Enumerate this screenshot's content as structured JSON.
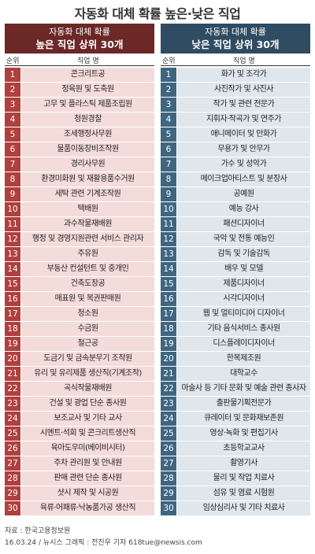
{
  "title": "자동화 대체 확률 높은·낮은 직업",
  "left_header": {
    "sub": "자동화 대체 확률",
    "main": "높은 직업 상위 30개"
  },
  "right_header": {
    "sub": "자동화 대체 확률",
    "main": "낮은 직업 상위 30개"
  },
  "col_rank": "순위",
  "col_job": "직업 명",
  "colors": {
    "high": "#b0403e",
    "high_bg": "#f4dcdb",
    "low": "#3f6680",
    "low_bg": "#dfe6ec"
  },
  "chart_data": {
    "type": "table",
    "high_jobs": [
      "콘크리트공",
      "정육원 및 도축원",
      "고무 및 플라스틱 제품조립원",
      "청원경찰",
      "조세행정사무원",
      "물품이동장비조작원",
      "경리사무원",
      "환경미화원 및 재활용품수거원",
      "세탁 관련 기계조작원",
      "택배원",
      "과수작물재배원",
      "행정 및 경영지원관련 서비스 관리자",
      "주유원",
      "부동산 컨설턴트 및 중개인",
      "건축도장공",
      "매표원 및 복권판매원",
      "청소원",
      "수금원",
      "철근공",
      "도금기 및 금속분무기 조작원",
      "유리 및 유리제품 생산직(기계조작)",
      "곡식작물재배원",
      "건설 및 광업 단순 종사원",
      "보조교사 및 기타 교사",
      "시멘트·석회 및 콘크리트생산직",
      "육아도우미(베이비시터)",
      "주차 관리원 및 안내원",
      "판매 관련 단순 종사원",
      "샷시 제작 및 시공원",
      "육류·어패류·낙농품가공 생산직"
    ],
    "low_jobs": [
      "화가 및 조각가",
      "사진작가 및 사진사",
      "작가 및 관련 전문가",
      "지휘자·작곡가 및 연주가",
      "애니메이터 및 만화가",
      "무용가 및 안무가",
      "가수 및 성악가",
      "메이크업아티스트 및 분장사",
      "공예원",
      "예능 강사",
      "패션디자이너",
      "국악 및 전통 예능인",
      "감독 및 기술감독",
      "배우 및 모델",
      "제품디자이너",
      "시각디자이너",
      "웹 및 멀티미디어 디자이너",
      "기타 음식서비스 종사원",
      "디스플레이디자이너",
      "한복제조원",
      "대학교수",
      "마술사 등 기타 문화 및 예술 관련 종사자",
      "출판물기획전문가",
      "큐레이터 및 문화재보존원",
      "영상·녹화 및 편집기사",
      "초등학교교사",
      "촬영기사",
      "물리 및 작업 치료사",
      "섬유 및 염료 시험원",
      "임상심리사 및 기타 치료사"
    ]
  },
  "source": "자료 : 한국고용정보원",
  "credit": "16.03.24 / 뉴시스 그래픽 : 전진우 기자 618tue@newsis.com"
}
